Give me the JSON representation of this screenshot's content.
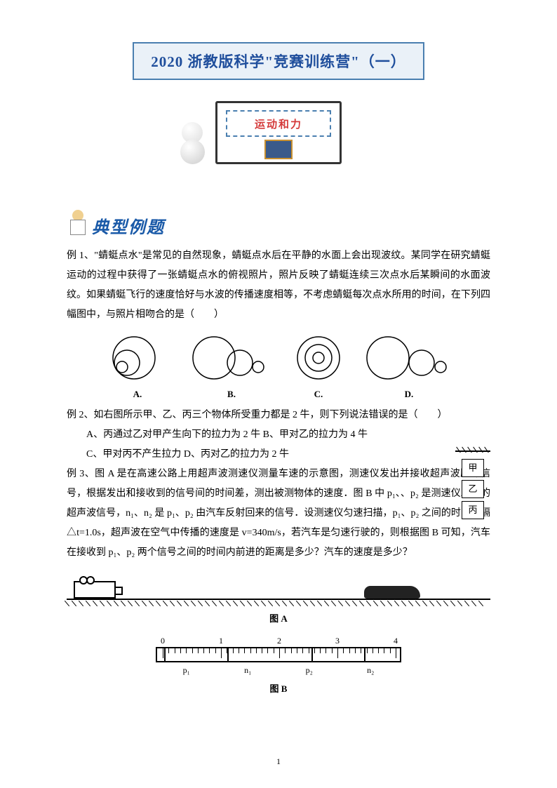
{
  "title": "2020 浙教版科学\"竞赛训练营\"（一）",
  "whiteboard_label": "运动和力",
  "section_heading": "典型例题",
  "example1": {
    "lead": "例 1、\"蜻蜓点水\"是常见的自然现象，蜻蜓点水后在平静的水面上会出现波纹。某同学在研究蜻蜓运动的过程中获得了一张蜻蜓点水的俯视照片，照片反映了蜻蜓连续三次点水后某瞬间的水面波纹。如果蜻蜓飞行的速度恰好与水波的传播速度相等，不考虑蜻蜓每次点水所用的时间，在下列四幅图中，与照片相吻合的是（　　）",
    "options": [
      "A.",
      "B.",
      "C.",
      "D."
    ]
  },
  "example2": {
    "lead": "例 2、如右图所示甲、乙、丙三个物体所受重力都是 2 牛，则下列说法错误的是（　　）",
    "optA": "A、丙通过乙对甲产生向下的拉力为 2 牛 B、甲对乙的拉力为 4 牛",
    "optC": "C、甲对丙不产生拉力 D、丙对乙的拉力为 2 牛",
    "boxes": [
      "甲",
      "乙",
      "丙"
    ]
  },
  "example3": {
    "lead": "例 3、图 A 是在高速公路上用超声波测速仪测量车速的示意图，测速仪发出并接收超声波脉冲信号，根据发出和接收到的信号间的时间差，测出被测物体的速度．图 B 中 p₁、、p₂ 是测速仪发出的超声波信号，n₁、n₂ 是 p₁、p₂ 由汽车反射回来的信号．设测速仪匀速扫描，p₁、p₂ 之间的时间间隔△t=1.0s，超声波在空气中传播的速度是 v=340m/s，若汽车是匀速行驶的，则根据图 B 可知，汽车在接收到 p₁、p₂ 两个信号之间的时间内前进的距离是多少？汽车的速度是多少？"
  },
  "figA_label": "图 A",
  "figB_label": "图 B",
  "ruler_numbers": [
    "0",
    "1",
    "2",
    "3",
    "4"
  ],
  "signals": [
    "p₁",
    "n₁",
    "p₂",
    "n₂"
  ],
  "page_number": "1",
  "colors": {
    "title_border": "#4a7fb0",
    "title_bg": "#eaf1f8",
    "title_text": "#1f4e9c",
    "board_text": "#d43a3a",
    "section_text": "#1a5aa8"
  }
}
